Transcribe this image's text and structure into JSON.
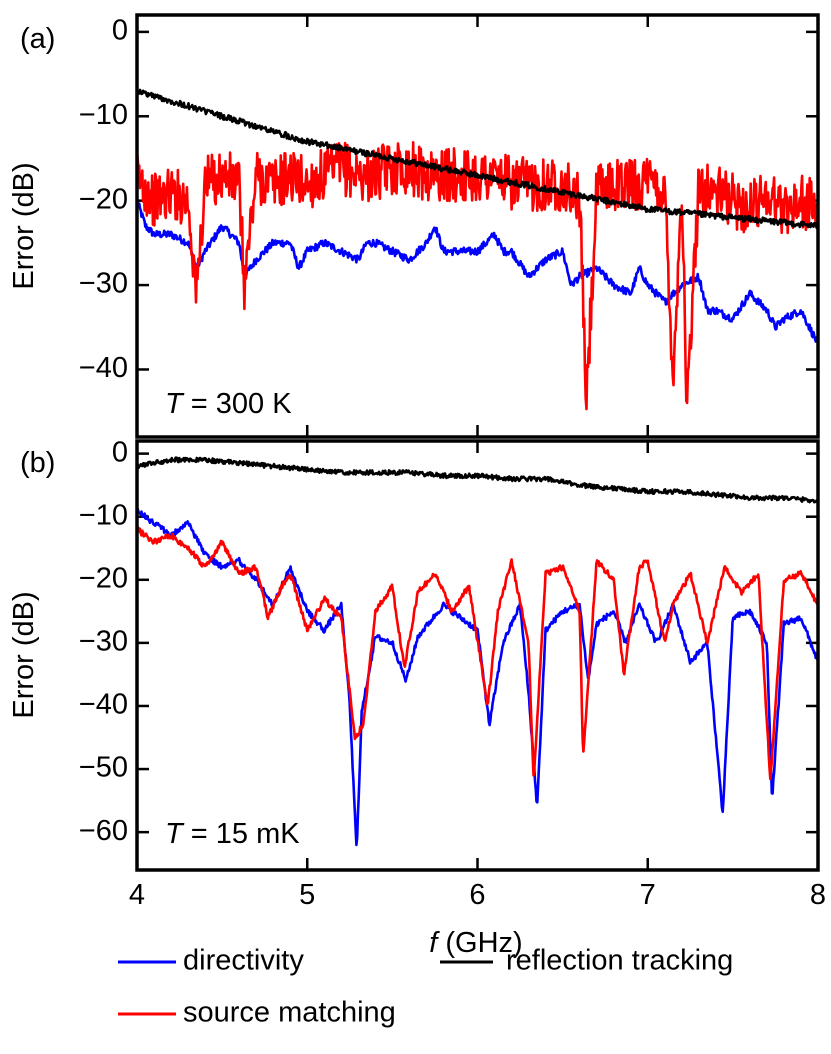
{
  "chart_data": [
    {
      "type": "line",
      "panel_label": "(a)",
      "temperature_symbol": "T",
      "temperature_value": " = 300 K",
      "xlabel": "",
      "ylabel": "Error (dB)",
      "xlim": [
        4,
        8
      ],
      "ylim": [
        -48,
        2
      ],
      "x_ticks": [
        4,
        5,
        6,
        7,
        8
      ],
      "y_ticks": [
        0,
        -10,
        -20,
        -30,
        -40
      ],
      "y_tick_labels": [
        "0",
        "−10",
        "−20",
        "−30",
        "−40"
      ],
      "series": [
        {
          "name": "directivity",
          "color": "#0000ff",
          "x": [
            4.0,
            4.05,
            4.1,
            4.2,
            4.3,
            4.35,
            4.4,
            4.5,
            4.6,
            4.63,
            4.7,
            4.8,
            4.9,
            4.95,
            5.0,
            5.1,
            5.2,
            5.3,
            5.35,
            5.4,
            5.5,
            5.6,
            5.7,
            5.75,
            5.8,
            5.9,
            6.0,
            6.1,
            6.15,
            6.2,
            6.3,
            6.4,
            6.5,
            6.55,
            6.6,
            6.7,
            6.8,
            6.9,
            6.95,
            7.0,
            7.1,
            7.2,
            7.3,
            7.35,
            7.4,
            7.5,
            7.6,
            7.7,
            7.75,
            7.8,
            7.9,
            8.0
          ],
          "y": [
            -20,
            -23,
            -24,
            -24,
            -25,
            -28,
            -26,
            -23,
            -25,
            -29,
            -27,
            -25,
            -25,
            -28,
            -26,
            -25,
            -26,
            -27,
            -25,
            -25,
            -26,
            -27,
            -25,
            -23,
            -26,
            -26,
            -26,
            -24,
            -26,
            -26,
            -29,
            -27,
            -26,
            -30,
            -29,
            -28,
            -30,
            -31,
            -28,
            -30,
            -32,
            -30,
            -29,
            -33,
            -33,
            -34,
            -31,
            -33,
            -35,
            -34,
            -33,
            -37
          ]
        },
        {
          "name": "source matching",
          "color": "#ff0000",
          "x": [
            4.0,
            4.1,
            4.2,
            4.3,
            4.35,
            4.4,
            4.5,
            4.6,
            4.63,
            4.7,
            4.8,
            4.9,
            5.0,
            5.1,
            5.2,
            5.3,
            5.4,
            5.5,
            5.6,
            5.7,
            5.8,
            5.9,
            6.0,
            6.1,
            6.2,
            6.3,
            6.4,
            6.5,
            6.6,
            6.64,
            6.7,
            6.8,
            6.9,
            7.0,
            7.1,
            7.15,
            7.2,
            7.23,
            7.3,
            7.4,
            7.5,
            7.6,
            7.7,
            7.8,
            7.9,
            8.0
          ],
          "y": [
            -17,
            -20,
            -19,
            -20,
            -31,
            -18,
            -17,
            -18,
            -30,
            -17,
            -18,
            -17,
            -18,
            -17,
            -16,
            -17,
            -17,
            -16,
            -16,
            -17,
            -17,
            -17,
            -17,
            -17,
            -18,
            -18,
            -18,
            -18,
            -20,
            -44,
            -19,
            -18,
            -18,
            -18,
            -19,
            -41,
            -18,
            -45,
            -18,
            -19,
            -20,
            -21,
            -19,
            -21,
            -20,
            -21
          ]
        },
        {
          "name": "reflection tracking",
          "color": "#000000",
          "x": [
            4.0,
            4.5,
            5.0,
            5.5,
            6.0,
            6.5,
            7.0,
            7.5,
            8.0
          ],
          "y": [
            -7,
            -10,
            -13,
            -15,
            -17,
            -19,
            -21,
            -22,
            -23
          ]
        }
      ]
    },
    {
      "type": "line",
      "panel_label": "(b)",
      "temperature_symbol": "T",
      "temperature_value": " = 15 mK",
      "xlabel_symbol": "f",
      "xlabel_unit": " (GHz)",
      "ylabel": "Error (dB)",
      "xlim": [
        4,
        8
      ],
      "ylim": [
        -66,
        2
      ],
      "x_ticks": [
        4,
        5,
        6,
        7,
        8
      ],
      "x_tick_labels": [
        "4",
        "5",
        "6",
        "7",
        "8"
      ],
      "y_ticks": [
        0,
        -10,
        -20,
        -30,
        -40,
        -50,
        -60
      ],
      "y_tick_labels": [
        "0",
        "−10",
        "−20",
        "−30",
        "−40",
        "−50",
        "−60"
      ],
      "series": [
        {
          "name": "directivity",
          "color": "#0000ff",
          "x": [
            4.0,
            4.1,
            4.2,
            4.3,
            4.4,
            4.5,
            4.6,
            4.7,
            4.8,
            4.85,
            4.9,
            5.0,
            5.1,
            5.2,
            5.25,
            5.29,
            5.32,
            5.4,
            5.5,
            5.58,
            5.65,
            5.8,
            5.9,
            6.0,
            6.07,
            6.15,
            6.25,
            6.3,
            6.35,
            6.4,
            6.5,
            6.6,
            6.65,
            6.7,
            6.8,
            6.87,
            6.95,
            7.05,
            7.15,
            7.25,
            7.35,
            7.44,
            7.5,
            7.6,
            7.7,
            7.73,
            7.8,
            7.9,
            8.0
          ],
          "y": [
            -9,
            -11,
            -13,
            -11,
            -16,
            -18,
            -17,
            -20,
            -24,
            -21,
            -18,
            -25,
            -28,
            -24,
            -40,
            -63,
            -41,
            -29,
            -30,
            -36,
            -29,
            -24,
            -26,
            -28,
            -43,
            -30,
            -24,
            -38,
            -56,
            -28,
            -25,
            -24,
            -36,
            -27,
            -25,
            -30,
            -24,
            -30,
            -24,
            -33,
            -30,
            -57,
            -26,
            -25,
            -30,
            -55,
            -27,
            -26,
            -33
          ]
        },
        {
          "name": "source matching",
          "color": "#ff0000",
          "x": [
            4.0,
            4.1,
            4.2,
            4.3,
            4.4,
            4.5,
            4.6,
            4.7,
            4.77,
            4.85,
            4.9,
            5.0,
            5.1,
            5.2,
            5.28,
            5.33,
            5.4,
            5.5,
            5.57,
            5.65,
            5.75,
            5.85,
            5.95,
            6.06,
            6.12,
            6.2,
            6.3,
            6.33,
            6.4,
            6.5,
            6.6,
            6.62,
            6.7,
            6.8,
            6.86,
            6.95,
            7.0,
            7.1,
            7.15,
            7.25,
            7.35,
            7.45,
            7.55,
            7.65,
            7.72,
            7.8,
            7.9,
            8.0
          ],
          "y": [
            -12,
            -14,
            -13,
            -15,
            -18,
            -14,
            -19,
            -18,
            -26,
            -21,
            -19,
            -28,
            -23,
            -26,
            -45,
            -43,
            -25,
            -21,
            -34,
            -22,
            -19,
            -25,
            -21,
            -40,
            -25,
            -17,
            -30,
            -52,
            -19,
            -18,
            -25,
            -48,
            -17,
            -20,
            -35,
            -18,
            -17,
            -30,
            -24,
            -19,
            -30,
            -18,
            -22,
            -19,
            -52,
            -20,
            -19,
            -24
          ]
        },
        {
          "name": "reflection tracking",
          "color": "#000000",
          "x": [
            4.0,
            4.2,
            4.4,
            4.6,
            4.8,
            5.0,
            5.2,
            5.4,
            5.6,
            5.8,
            6.0,
            6.2,
            6.4,
            6.6,
            6.8,
            7.0,
            7.2,
            7.4,
            7.6,
            7.8,
            8.0
          ],
          "y": [
            -2,
            -1,
            -1,
            -1.5,
            -2,
            -2.5,
            -3,
            -3,
            -3,
            -3.5,
            -3.5,
            -4,
            -4,
            -5,
            -5.5,
            -6,
            -6,
            -6.5,
            -7,
            -7,
            -7.5
          ]
        }
      ]
    }
  ],
  "legend": [
    {
      "label": "directivity",
      "color": "#0000ff"
    },
    {
      "label": "reflection tracking",
      "color": "#000000"
    },
    {
      "label": "source matching",
      "color": "#ff0000"
    }
  ]
}
